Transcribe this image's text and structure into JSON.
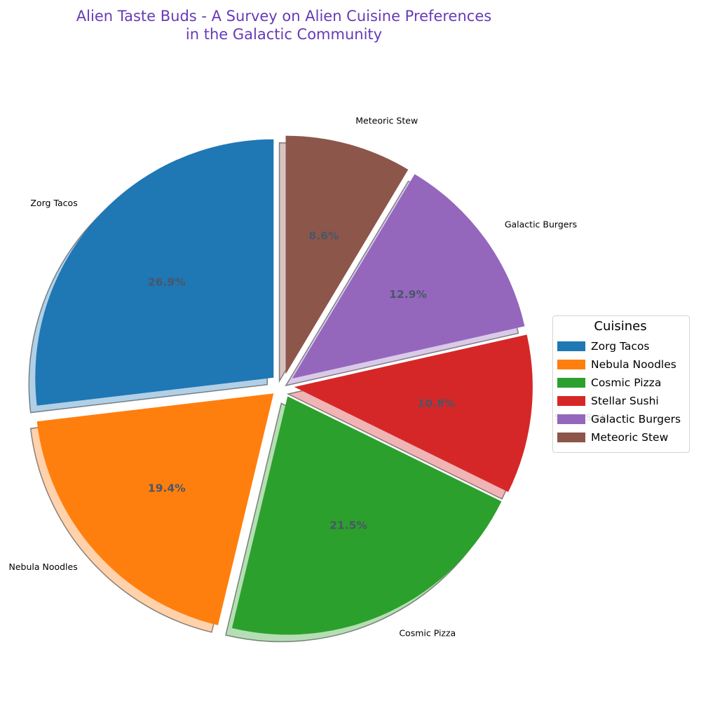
{
  "chart_data": {
    "type": "pie",
    "title": "Alien Taste Buds - A Survey on Alien Cuisine Preferences\nin the Galactic Community",
    "categories": [
      "Zorg Tacos",
      "Nebula Noodles",
      "Cosmic Pizza",
      "Stellar Sushi",
      "Galactic Burgers",
      "Meteoric Stew"
    ],
    "values": [
      26.9,
      19.4,
      21.5,
      10.8,
      12.9,
      8.6
    ],
    "percent_labels": [
      "26.9%",
      "19.4%",
      "21.5%",
      "10.8%",
      "12.9%",
      "8.6%"
    ],
    "colors": [
      "#1f77b4",
      "#ff7f0e",
      "#2ca02c",
      "#d62728",
      "#9467bd",
      "#8c564b"
    ],
    "start_angle_deg": 90,
    "direction": "counterclockwise",
    "shadow": true,
    "exploded": true,
    "legend": {
      "title": "Cuisines",
      "placement": "right"
    }
  }
}
